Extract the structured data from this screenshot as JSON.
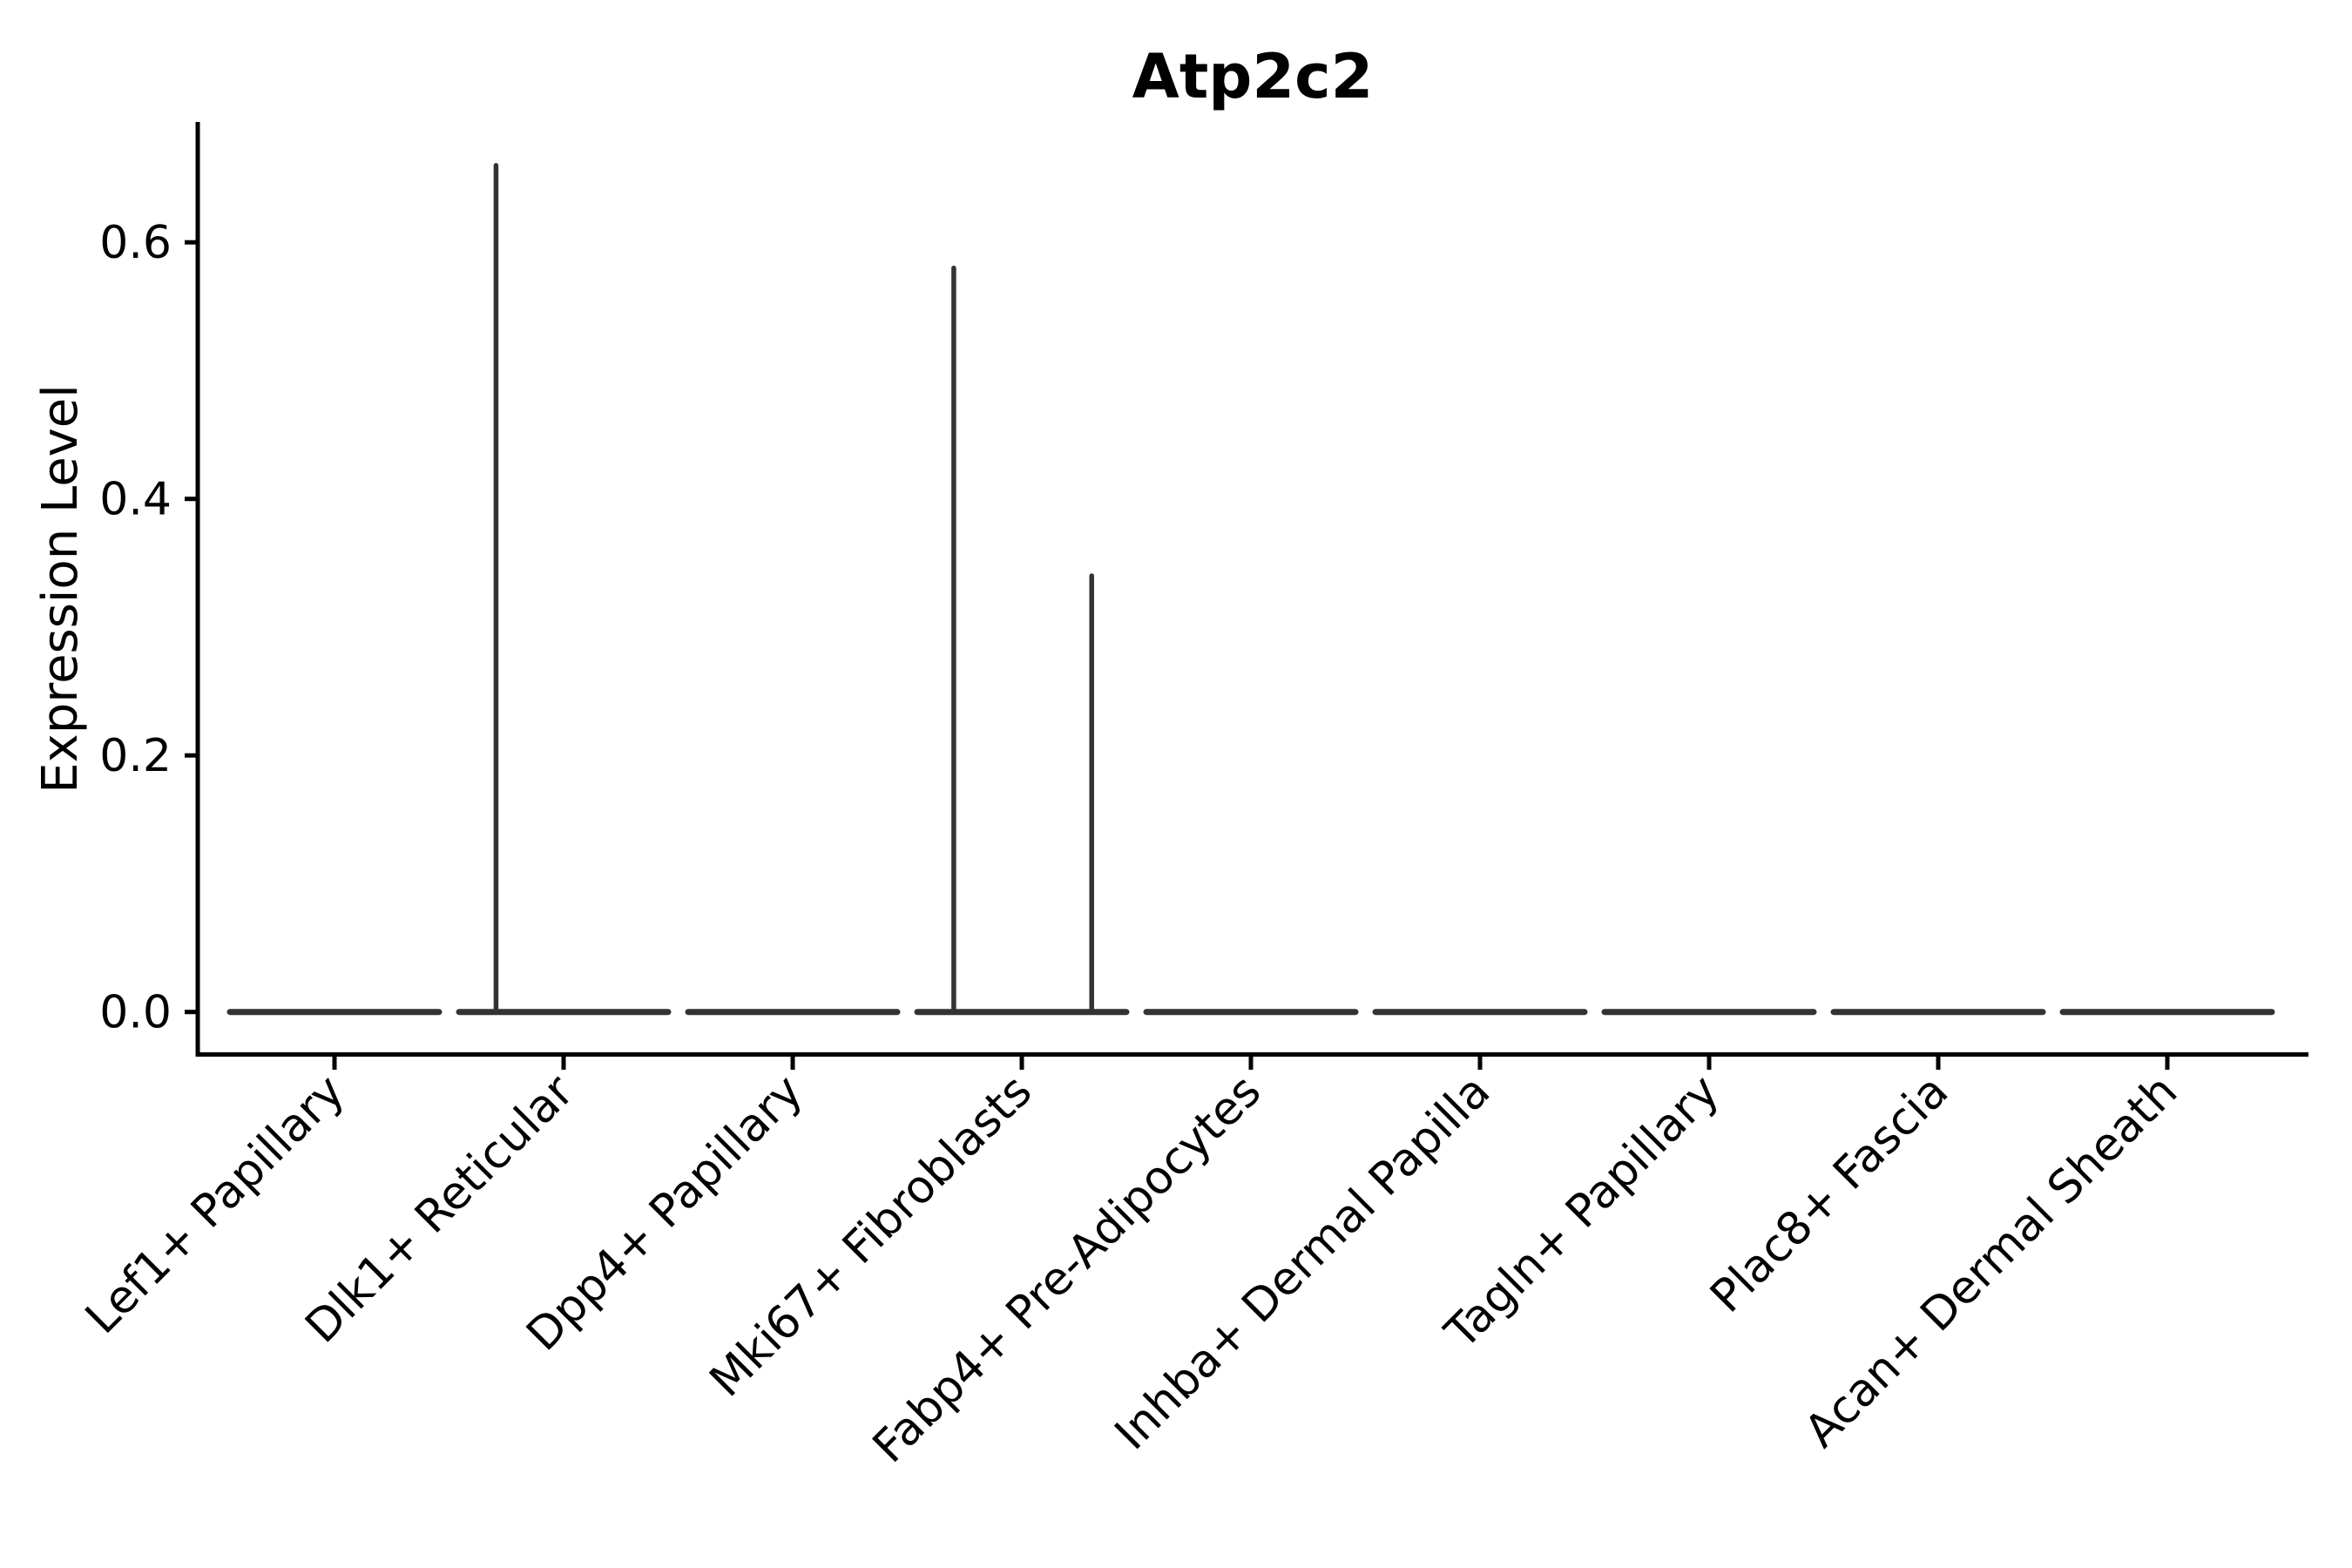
{
  "chart_data": {
    "type": "violin",
    "title": "Atp2c2",
    "xlabel": "",
    "ylabel": "Expression Level",
    "ytick_labels": [
      "0.0",
      "0.2",
      "0.4",
      "0.6"
    ],
    "ytick_values": [
      0.0,
      0.2,
      0.4,
      0.6
    ],
    "ylim": [
      -0.033,
      0.694
    ],
    "grid": false,
    "legend": "none",
    "categories": [
      "Lef1+ Papillary",
      "Dlk1+ Reticular",
      "Dpp4+ Papillary",
      "Mki67+ Fibroblasts",
      "Fabp4+ Pre-Adipocytes",
      "Inhba+ Dermal Papilla",
      "Tagln+ Papillary",
      "Plac8+ Fascia",
      "Acan+ Dermal Sheath"
    ],
    "series": [
      {
        "category": "Lef1+ Papillary",
        "body_value": 0.0,
        "max": 0.0,
        "tails": []
      },
      {
        "category": "Dlk1+ Reticular",
        "body_value": 0.0,
        "max": 0.66,
        "tails": [
          {
            "offset_frac": -0.295,
            "value": 0.66
          }
        ]
      },
      {
        "category": "Dpp4+ Papillary",
        "body_value": 0.0,
        "max": 0.0,
        "tails": []
      },
      {
        "category": "Mki67+ Fibroblasts",
        "body_value": 0.0,
        "max": 0.58,
        "tails": [
          {
            "offset_frac": -0.297,
            "value": 0.58
          },
          {
            "offset_frac": 0.305,
            "value": 0.34
          }
        ]
      },
      {
        "category": "Fabp4+ Pre-Adipocytes",
        "body_value": 0.0,
        "max": 0.0,
        "tails": []
      },
      {
        "category": "Inhba+ Dermal Papilla",
        "body_value": 0.0,
        "max": 0.0,
        "tails": []
      },
      {
        "category": "Tagln+ Papillary",
        "body_value": 0.0,
        "max": 0.0,
        "tails": []
      },
      {
        "category": "Plac8+ Fascia",
        "body_value": 0.0,
        "max": 0.0,
        "tails": []
      },
      {
        "category": "Acan+ Dermal Sheath",
        "body_value": 0.0,
        "max": 0.0,
        "tails": []
      }
    ],
    "colors": {
      "background": "#ffffff",
      "axis": "#000000",
      "text": "#000000",
      "violin": "#333333"
    }
  }
}
